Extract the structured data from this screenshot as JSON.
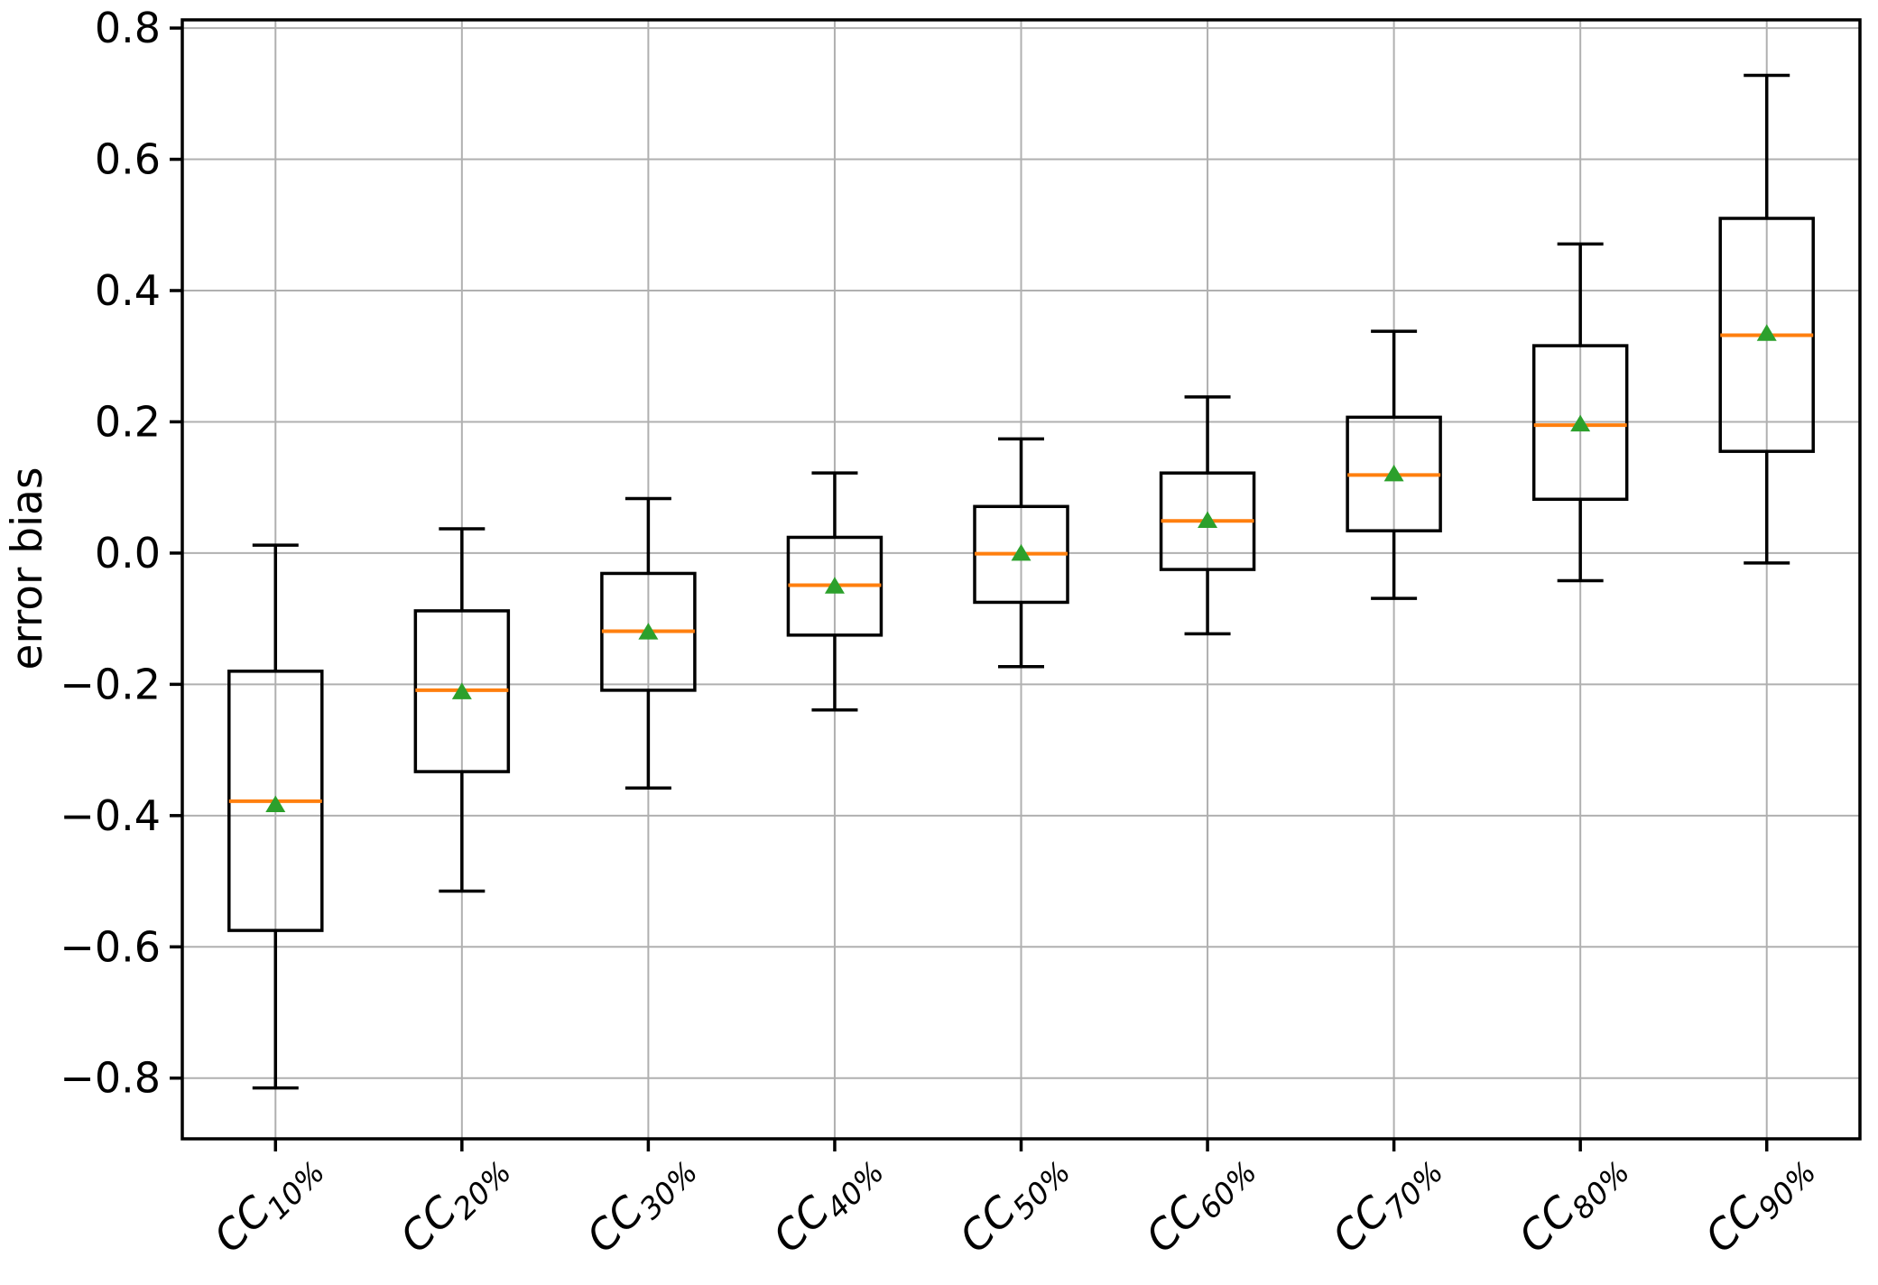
{
  "chart_data": {
    "type": "boxplot",
    "title": "",
    "xlabel": "",
    "ylabel": "error bias",
    "ylim": [
      -0.8925,
      0.8125
    ],
    "yticks": [
      0.8,
      0.6,
      0.4,
      0.2,
      0.0,
      -0.2,
      -0.4,
      -0.6,
      -0.8
    ],
    "grid": true,
    "categories": [
      "CC10%",
      "CC20%",
      "CC30%",
      "CC40%",
      "CC50%",
      "CC60%",
      "CC70%",
      "CC80%",
      "CC90%"
    ],
    "category_label_parts": [
      {
        "base": "CC",
        "sub": "10%"
      },
      {
        "base": "CC",
        "sub": "20%"
      },
      {
        "base": "CC",
        "sub": "30%"
      },
      {
        "base": "CC",
        "sub": "40%"
      },
      {
        "base": "CC",
        "sub": "50%"
      },
      {
        "base": "CC",
        "sub": "60%"
      },
      {
        "base": "CC",
        "sub": "70%"
      },
      {
        "base": "CC",
        "sub": "80%"
      },
      {
        "base": "CC",
        "sub": "90%"
      }
    ],
    "boxes": [
      {
        "label": "CC10%",
        "whisker_low": -0.815,
        "q1": -0.575,
        "median": -0.378,
        "mean": -0.383,
        "q3": -0.18,
        "whisker_high": 0.012
      },
      {
        "label": "CC20%",
        "whisker_low": -0.515,
        "q1": -0.333,
        "median": -0.209,
        "mean": -0.211,
        "q3": -0.088,
        "whisker_high": 0.037
      },
      {
        "label": "CC30%",
        "whisker_low": -0.358,
        "q1": -0.209,
        "median": -0.119,
        "mean": -0.12,
        "q3": -0.031,
        "whisker_high": 0.083
      },
      {
        "label": "CC40%",
        "whisker_low": -0.239,
        "q1": -0.125,
        "median": -0.049,
        "mean": -0.05,
        "q3": 0.024,
        "whisker_high": 0.122
      },
      {
        "label": "CC50%",
        "whisker_low": -0.173,
        "q1": -0.075,
        "median": -0.001,
        "mean": 0.0,
        "q3": 0.071,
        "whisker_high": 0.174
      },
      {
        "label": "CC60%",
        "whisker_low": -0.123,
        "q1": -0.025,
        "median": 0.049,
        "mean": 0.05,
        "q3": 0.122,
        "whisker_high": 0.238
      },
      {
        "label": "CC70%",
        "whisker_low": -0.069,
        "q1": 0.034,
        "median": 0.119,
        "mean": 0.121,
        "q3": 0.207,
        "whisker_high": 0.338
      },
      {
        "label": "CC80%",
        "whisker_low": -0.042,
        "q1": 0.082,
        "median": 0.195,
        "mean": 0.197,
        "q3": 0.316,
        "whisker_high": 0.471
      },
      {
        "label": "CC90%",
        "whisker_low": -0.015,
        "q1": 0.155,
        "median": 0.332,
        "mean": 0.335,
        "q3": 0.51,
        "whisker_high": 0.728
      }
    ],
    "colors": {
      "box_line": "#000000",
      "median_line": "#ff7f0e",
      "mean_marker": "#2ca02c",
      "gridline": "#b0b0b0",
      "tick_text": "#000000",
      "background": "#ffffff"
    }
  }
}
